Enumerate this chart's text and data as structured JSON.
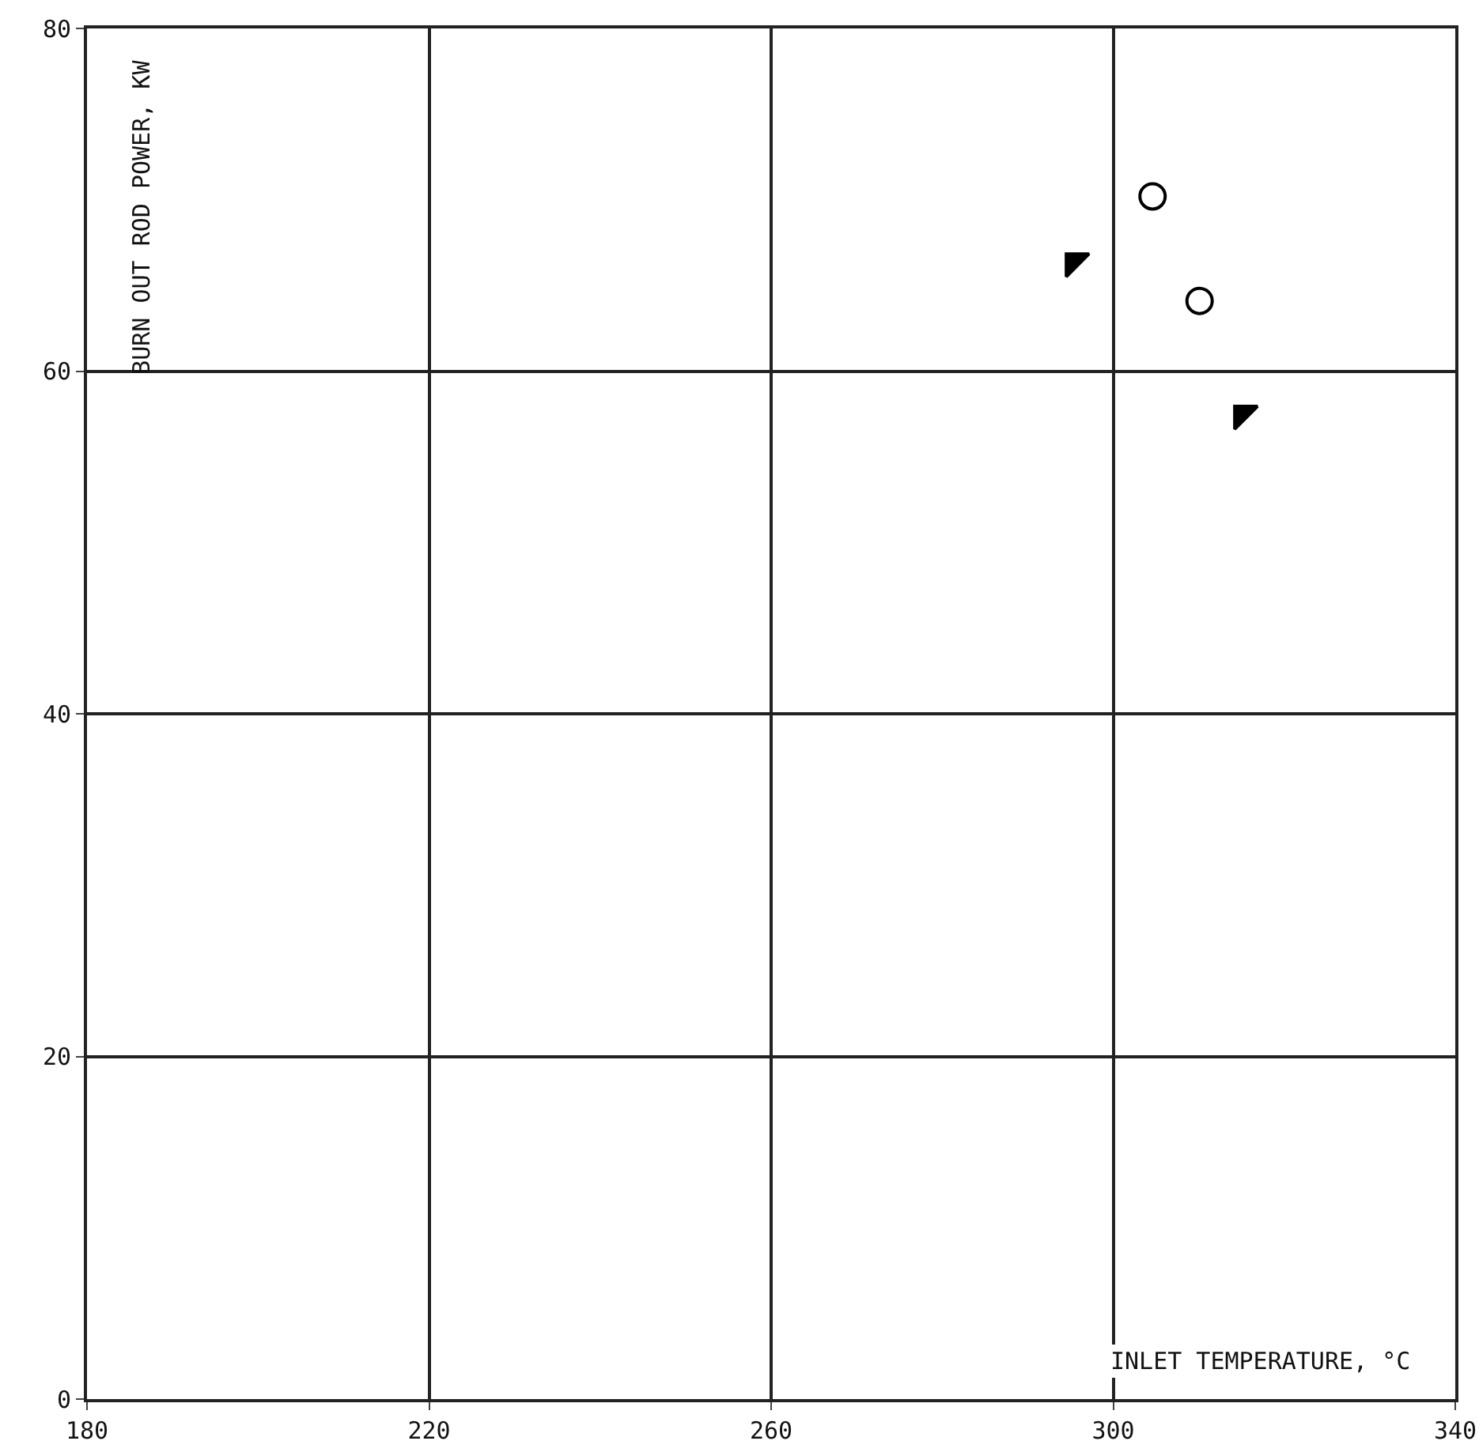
{
  "chart_data": {
    "type": "scatter",
    "xlabel": "INLET TEMPERATURE, °C",
    "ylabel": "BURN OUT ROD POWER, KW",
    "xlim": [
      180,
      340
    ],
    "xticks": [
      180,
      220,
      260,
      300,
      340
    ],
    "ylim": [
      0,
      80
    ],
    "yticks": [
      0,
      20,
      40,
      60,
      80
    ],
    "grid": true,
    "series": [
      {
        "color": "#000000",
        "marker": "circle",
        "x": [
          304.6,
          310.1
        ],
        "values": [
          70.2,
          64.1
        ]
      },
      {
        "color": "#000000",
        "marker": "triangle",
        "x": [
          295.4,
          315.1
        ],
        "values": [
          66.4,
          57.5
        ]
      }
    ]
  }
}
